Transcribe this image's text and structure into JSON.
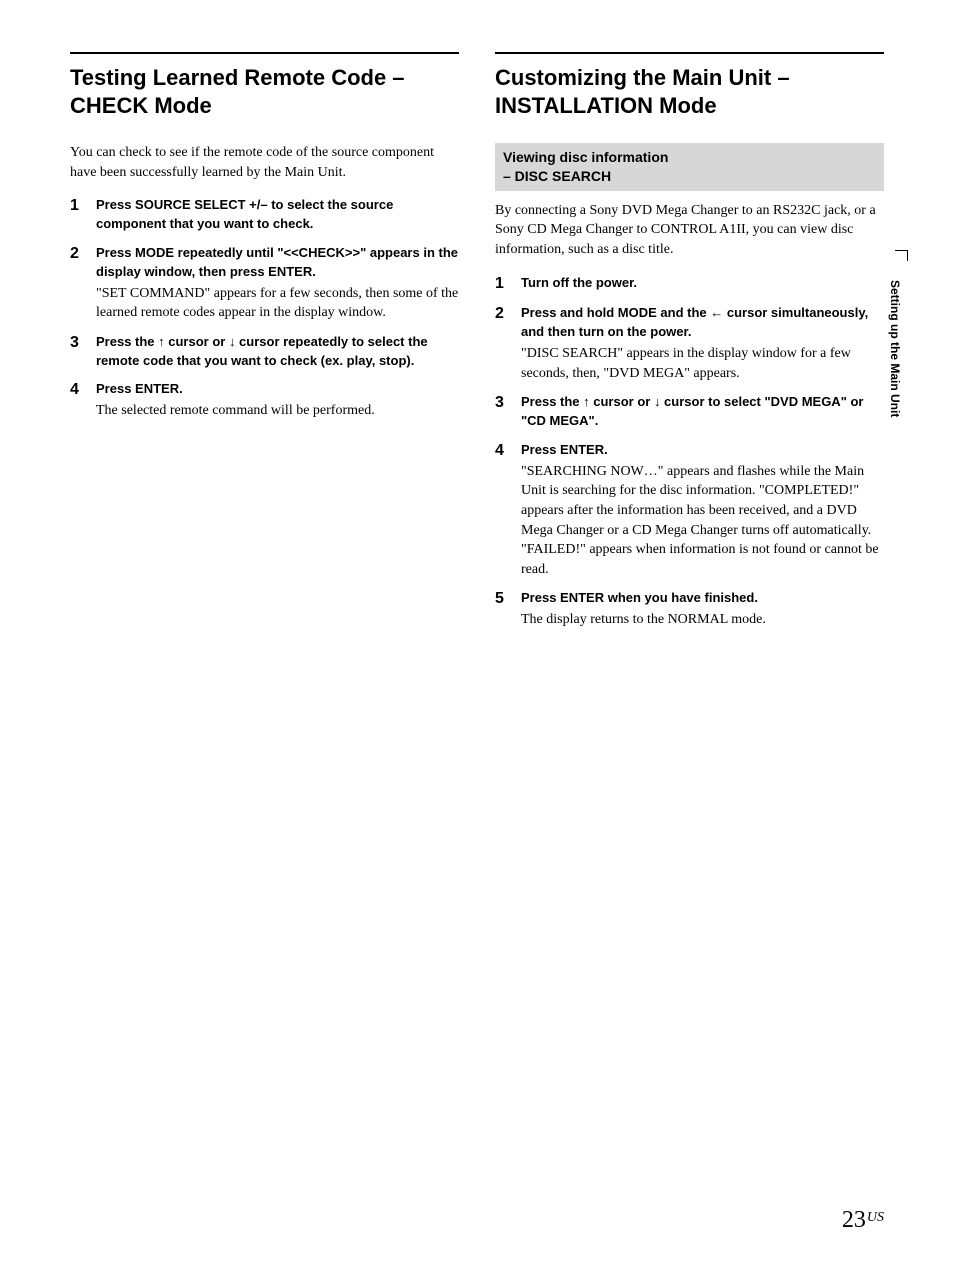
{
  "left": {
    "title": "Testing Learned Remote Code – CHECK Mode",
    "intro": "You can check to see if the remote code of the source component have been  successfully learned by the Main Unit.",
    "steps": [
      {
        "num": "1",
        "head": "Press SOURCE SELECT +/– to select the source component that you want to check.",
        "desc": ""
      },
      {
        "num": "2",
        "head": "Press MODE repeatedly until \"<<CHECK>>\" appears in the display window, then press ENTER.",
        "desc": "\"SET COMMAND\" appears for a few seconds, then some of the learned remote codes appear in the display window."
      },
      {
        "num": "3",
        "head": "Press the ↑ cursor or ↓ cursor repeatedly to select the remote code that you want to check (ex. play, stop).",
        "desc": ""
      },
      {
        "num": "4",
        "head": "Press ENTER.",
        "desc": "The selected remote command will be performed."
      }
    ]
  },
  "right": {
    "title": "Customizing the Main Unit – INSTALLATION Mode",
    "subhead_line1": "Viewing disc information",
    "subhead_line2": "– DISC SEARCH",
    "intro": "By connecting a Sony DVD Mega Changer to an RS232C jack, or a Sony CD Mega Changer to CONTROL A1II, you can view disc information, such as a disc title.",
    "steps": [
      {
        "num": "1",
        "head": "Turn off the power.",
        "desc": ""
      },
      {
        "num": "2",
        "head": "Press and hold MODE and the ← cursor simultaneously, and then turn on the power.",
        "desc": "\"DISC SEARCH\" appears in the display window for a few seconds, then, \"DVD MEGA\" appears."
      },
      {
        "num": "3",
        "head": "Press the ↑ cursor or ↓ cursor to select \"DVD MEGA\" or \"CD MEGA\".",
        "desc": ""
      },
      {
        "num": "4",
        "head": "Press ENTER.",
        "desc": "\"SEARCHING NOW…\" appears and flashes while the Main Unit is searching for the disc information. \"COMPLETED!\" appears after the information has been received, and a DVD Mega Changer or a CD Mega Changer turns off automatically.\n\"FAILED!\" appears when information is not found or cannot be read."
      },
      {
        "num": "5",
        "head": "Press ENTER when you have finished.",
        "desc": "The display returns to the NORMAL mode."
      }
    ]
  },
  "side_label": "Setting up the Main Unit",
  "page_num": "23",
  "page_suffix": "US",
  "colors": {
    "rule": "#000000",
    "subhead_bg": "#d7d7d7",
    "text": "#000000",
    "background": "#ffffff"
  },
  "typography": {
    "title_fontsize": 22,
    "body_fontsize": 14,
    "step_head_fontsize": 13,
    "step_num_fontsize": 16,
    "side_label_fontsize": 12,
    "page_num_fontsize": 24
  }
}
